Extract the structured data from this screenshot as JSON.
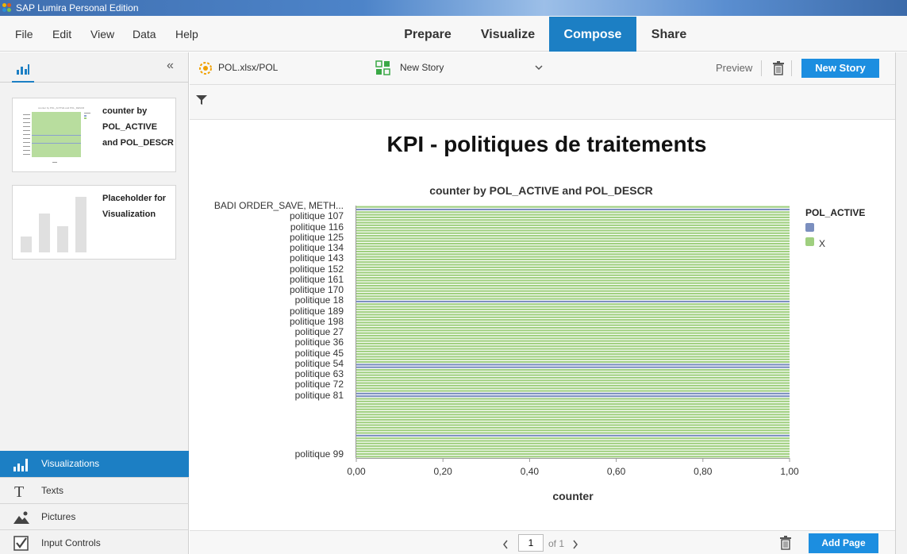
{
  "window": {
    "title": "SAP Lumira Personal Edition"
  },
  "menu": {
    "items": [
      "File",
      "Edit",
      "View",
      "Data",
      "Help"
    ]
  },
  "nav": {
    "tabs": [
      "Prepare",
      "Visualize",
      "Compose",
      "Share"
    ],
    "active": "Compose"
  },
  "left_panel": {
    "collapse_label": "«",
    "thumbnails": [
      {
        "title_lines": [
          "counter by",
          "POL_ACTIVE",
          "and POL_DESCR"
        ]
      },
      {
        "title_lines": [
          "Placeholder for",
          "Visualization"
        ]
      }
    ],
    "tabs": [
      "Visualizations",
      "Texts",
      "Pictures",
      "Input Controls"
    ],
    "active_tab": "Visualizations"
  },
  "toolbar": {
    "dataset": "POL.xlsx/POL",
    "story_select": "New Story",
    "preview_label": "Preview",
    "new_story_button": "New Story"
  },
  "canvas": {
    "story_title": "KPI - politiques de traitements"
  },
  "chart_data": {
    "type": "bar",
    "orientation": "horizontal",
    "title": "counter by POL_ACTIVE and POL_DESCR",
    "xlabel": "counter",
    "ylabel": "",
    "xlim": [
      0,
      1
    ],
    "x_ticks": [
      "0,00",
      "0,20",
      "0,40",
      "0,60",
      "0,80",
      "1,00"
    ],
    "categories_labeled": [
      "BADI ORDER_SAVE, METH...",
      "politique 107",
      "politique 116",
      "politique 125",
      "politique 134",
      "politique 143",
      "politique 152",
      "politique 161",
      "politique 170",
      "politique 18",
      "politique 189",
      "politique 198",
      "politique 27",
      "politique 36",
      "politique 45",
      "politique 54",
      "politique 63",
      "politique 72",
      "politique 81",
      "politique 99"
    ],
    "category_count": 96,
    "blank_category_indices": [
      1,
      36,
      60,
      61,
      71,
      72,
      87
    ],
    "values_note": "",
    "value_per_category": 1,
    "legend": {
      "title": "POL_ACTIVE",
      "position": "right",
      "entries": [
        {
          "name": "",
          "color": "#7b8fbf"
        },
        {
          "name": "X",
          "color": "#9fcf7f"
        }
      ]
    },
    "grid": false
  },
  "bottom": {
    "page_value": "1",
    "page_of": "of 1",
    "add_page_button": "Add Page"
  },
  "colors": {
    "accent": "#1c7fc4",
    "button": "#1c8ee0",
    "series_x": "#9fcf7f",
    "series_blank": "#7b8fbf"
  }
}
